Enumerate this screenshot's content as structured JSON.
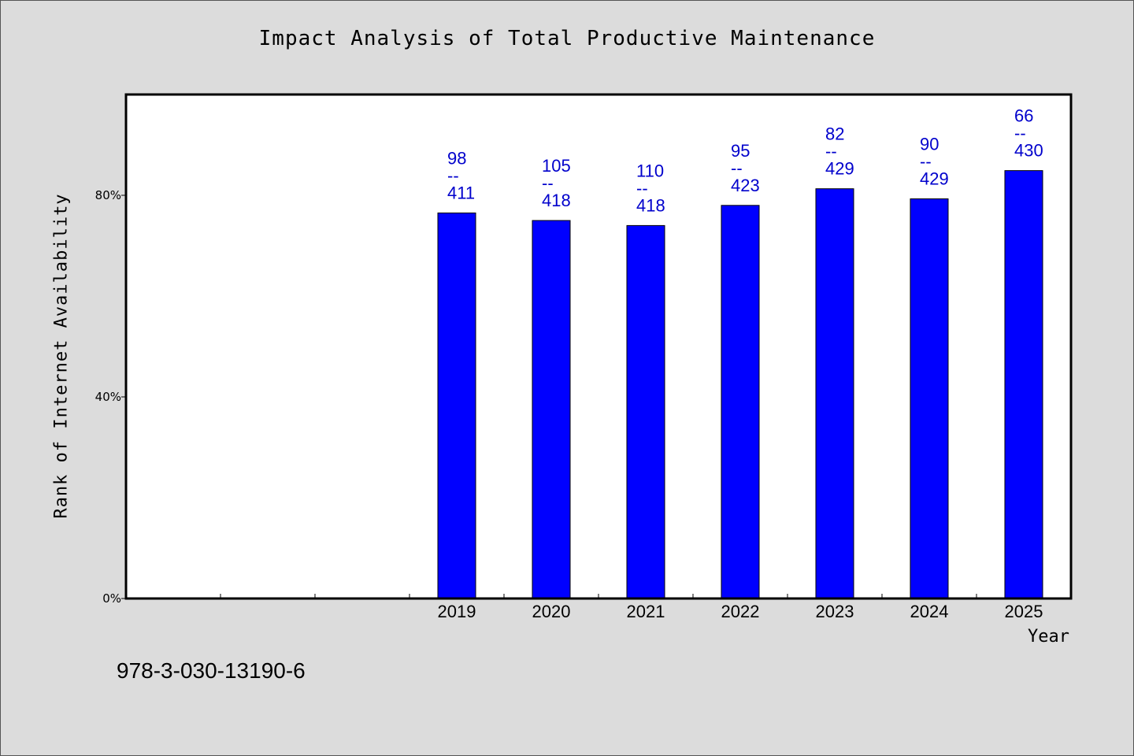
{
  "chart_data": {
    "type": "bar",
    "title": "Impact Analysis of Total Productive Maintenance",
    "xlabel": "Year",
    "ylabel": "Rank of Internet Availability",
    "categories": [
      "",
      "",
      "",
      "2019",
      "2020",
      "2021",
      "2022",
      "2023",
      "2024",
      "2025"
    ],
    "values": [
      null,
      null,
      null,
      76.5,
      75,
      74,
      78,
      81.3,
      79.3,
      84.9
    ],
    "value_labels": [
      null,
      null,
      null,
      [
        "98",
        "--",
        "411"
      ],
      [
        "105",
        "--",
        "418"
      ],
      [
        "110",
        "--",
        "418"
      ],
      [
        "95",
        "--",
        "423"
      ],
      [
        "82",
        "--",
        "429"
      ],
      [
        "90",
        "--",
        "429"
      ],
      [
        "66",
        "--",
        "430"
      ]
    ],
    "ylim": [
      0,
      100
    ],
    "yticks": [
      0,
      40,
      80
    ],
    "ytick_labels": [
      "0%",
      "40%",
      "80%"
    ],
    "grid": false,
    "bar_color": "#0000ff",
    "label_color": "#0000cc",
    "plot_background": "#ffffff"
  },
  "footer": {
    "isbn": "978-3-030-13190-6"
  }
}
